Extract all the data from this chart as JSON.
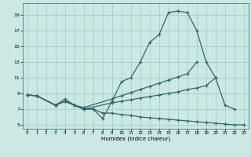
{
  "xlabel": "Humidex (Indice chaleur)",
  "bg_color": "#cce8e4",
  "grid_color": "#99cccc",
  "line_color": "#336666",
  "xlim": [
    -0.5,
    23.5
  ],
  "ylim": [
    4.5,
    20.5
  ],
  "yticks": [
    5,
    7,
    9,
    11,
    13,
    15,
    17,
    19
  ],
  "xticks": [
    0,
    1,
    2,
    3,
    4,
    5,
    6,
    7,
    8,
    9,
    10,
    11,
    12,
    13,
    14,
    15,
    16,
    17,
    18,
    19,
    20,
    21,
    22,
    23
  ],
  "series": [
    {
      "x": [
        0,
        1,
        3,
        4,
        5,
        6,
        7,
        8,
        9,
        10,
        11,
        12,
        13,
        14,
        15,
        16,
        17,
        18,
        19,
        20,
        21,
        22
      ],
      "y": [
        8.8,
        8.7,
        7.5,
        8.0,
        7.5,
        7.0,
        7.0,
        5.8,
        8.0,
        10.5,
        11.0,
        13.0,
        15.5,
        16.5,
        19.3,
        19.5,
        19.3,
        17.0,
        13.0,
        11.0,
        7.5,
        7.0
      ]
    },
    {
      "x": [
        0,
        1,
        3,
        4,
        5,
        6,
        9,
        10,
        11,
        12,
        13,
        14,
        15,
        16,
        17,
        18
      ],
      "y": [
        8.8,
        8.7,
        7.5,
        8.0,
        7.5,
        7.2,
        8.3,
        8.7,
        9.1,
        9.5,
        9.9,
        10.3,
        10.7,
        11.1,
        11.5,
        13.0
      ]
    },
    {
      "x": [
        0,
        1,
        3,
        4,
        5,
        6,
        9,
        10,
        11,
        12,
        13,
        14,
        15,
        16,
        17,
        18,
        19,
        20
      ],
      "y": [
        8.8,
        8.7,
        7.5,
        8.0,
        7.5,
        7.0,
        7.8,
        8.0,
        8.2,
        8.4,
        8.6,
        8.8,
        9.0,
        9.2,
        9.5,
        9.7,
        10.0,
        11.0
      ]
    },
    {
      "x": [
        0,
        1,
        3,
        4,
        5,
        6,
        7,
        8,
        9,
        10,
        11,
        12,
        13,
        14,
        15,
        16,
        17,
        18,
        19,
        20,
        21,
        22,
        23
      ],
      "y": [
        8.8,
        8.7,
        7.5,
        8.3,
        7.5,
        7.0,
        7.0,
        6.5,
        6.5,
        6.3,
        6.2,
        6.0,
        5.9,
        5.8,
        5.7,
        5.6,
        5.5,
        5.4,
        5.3,
        5.2,
        5.1,
        5.0,
        5.0
      ]
    }
  ]
}
